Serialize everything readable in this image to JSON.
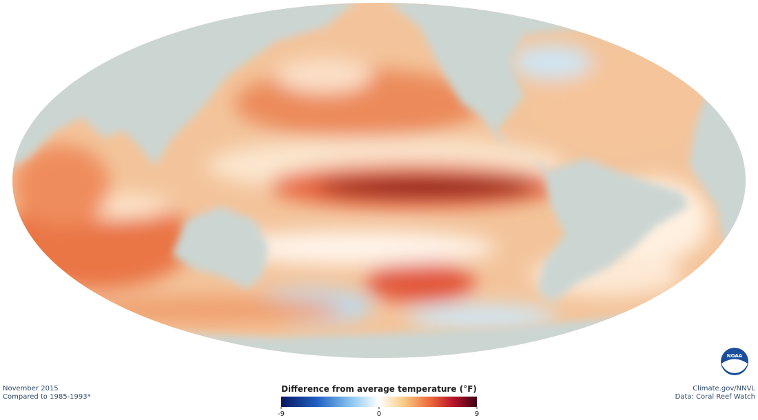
{
  "footer": {
    "date": "November 2015",
    "baseline": "Compared to 1985-1993*",
    "credit": "Climate.gov/NNVL",
    "source": "Data: Coral Reef Watch"
  },
  "logo": "NOAA",
  "legend": {
    "title": "Difference from average temperature (°F)",
    "lim": [
      -9,
      9
    ],
    "ticks": [
      -9,
      0,
      9
    ]
  }
}
